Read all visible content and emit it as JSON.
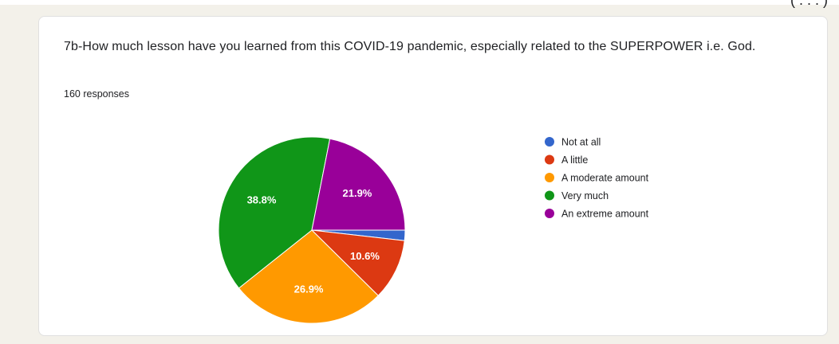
{
  "question": "7b-How much lesson have you learned from this COVID-19 pandemic, especially related to the SUPERPOWER i.e. God.",
  "response_count": "160 responses",
  "top_cut_text": "( . . . )",
  "chart_data": {
    "type": "pie",
    "title": "",
    "categories": [
      "Not at all",
      "A little",
      "A moderate amount",
      "Very much",
      "An extreme amount"
    ],
    "values": [
      1.8,
      10.6,
      26.9,
      38.8,
      21.9
    ],
    "unit": "%",
    "data_labels": [
      "",
      "10.6%",
      "26.9%",
      "38.8%",
      "21.9%"
    ],
    "colors": [
      "#3366cc",
      "#dc3912",
      "#ff9900",
      "#109618",
      "#990099"
    ],
    "legend_position": "right"
  }
}
